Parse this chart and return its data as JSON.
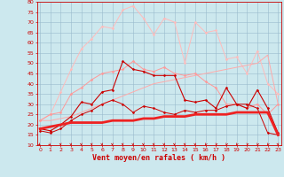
{
  "xlabel": "Vent moyen/en rafales ( km/h )",
  "bg_color": "#cce8ee",
  "grid_color": "#99bbcc",
  "xlim": [
    -0.3,
    23.3
  ],
  "ylim": [
    10,
    80
  ],
  "yticks": [
    10,
    15,
    20,
    25,
    30,
    35,
    40,
    45,
    50,
    55,
    60,
    65,
    70,
    75,
    80
  ],
  "xticks": [
    0,
    1,
    2,
    3,
    4,
    5,
    6,
    7,
    8,
    9,
    10,
    11,
    12,
    13,
    14,
    15,
    16,
    17,
    18,
    19,
    20,
    21,
    22,
    23
  ],
  "series": [
    {
      "x": [
        0,
        1,
        2,
        3,
        4,
        5,
        6,
        7,
        8,
        9,
        10,
        11,
        12,
        13,
        14,
        15,
        16,
        17,
        18,
        19,
        20,
        21,
        22,
        23
      ],
      "y": [
        22,
        25,
        36,
        47,
        57,
        62,
        68,
        67,
        76,
        78,
        72,
        64,
        72,
        70,
        50,
        70,
        65,
        66,
        52,
        53,
        45,
        56,
        40,
        35
      ],
      "color": "#ffbbbb",
      "linewidth": 0.7,
      "marker": "D",
      "markersize": 1.5,
      "zorder": 2
    },
    {
      "x": [
        0,
        1,
        2,
        3,
        4,
        5,
        6,
        7,
        8,
        9,
        10,
        11,
        12,
        13,
        14,
        15,
        16,
        17,
        18,
        19,
        20,
        21,
        22,
        23
      ],
      "y": [
        22,
        25,
        26,
        35,
        38,
        42,
        45,
        46,
        47,
        51,
        47,
        46,
        48,
        45,
        44,
        45,
        41,
        38,
        30,
        30,
        28,
        30,
        25,
        30
      ],
      "color": "#ff9999",
      "linewidth": 0.7,
      "marker": "D",
      "markersize": 1.5,
      "zorder": 3
    },
    {
      "x": [
        0,
        1,
        2,
        3,
        4,
        5,
        6,
        7,
        8,
        9,
        10,
        11,
        12,
        13,
        14,
        15,
        16,
        17,
        18,
        19,
        20,
        21,
        22,
        23
      ],
      "y": [
        22,
        22,
        23,
        24,
        26,
        28,
        30,
        32,
        34,
        36,
        38,
        40,
        41,
        42,
        43,
        44,
        45,
        46,
        47,
        48,
        49,
        50,
        54,
        30
      ],
      "color": "#ffaaaa",
      "linewidth": 0.7,
      "marker": null,
      "markersize": 0,
      "zorder": 2
    },
    {
      "x": [
        0,
        1,
        2,
        3,
        4,
        5,
        6,
        7,
        8,
        9,
        10,
        11,
        12,
        13,
        14,
        15,
        16,
        17,
        18,
        19,
        20,
        21,
        22,
        23
      ],
      "y": [
        18,
        17,
        20,
        24,
        31,
        30,
        36,
        37,
        51,
        47,
        46,
        44,
        44,
        44,
        32,
        31,
        32,
        28,
        38,
        30,
        28,
        37,
        28,
        16
      ],
      "color": "#cc0000",
      "linewidth": 0.8,
      "marker": "D",
      "markersize": 1.5,
      "zorder": 4
    },
    {
      "x": [
        0,
        1,
        2,
        3,
        4,
        5,
        6,
        7,
        8,
        9,
        10,
        11,
        12,
        13,
        14,
        15,
        16,
        17,
        18,
        19,
        20,
        21,
        22,
        23
      ],
      "y": [
        17,
        16,
        18,
        22,
        25,
        27,
        30,
        32,
        30,
        26,
        29,
        28,
        26,
        25,
        27,
        26,
        27,
        27,
        29,
        30,
        30,
        28,
        16,
        15
      ],
      "color": "#cc0000",
      "linewidth": 0.7,
      "marker": "D",
      "markersize": 1.5,
      "zorder": 4
    },
    {
      "x": [
        0,
        1,
        2,
        3,
        4,
        5,
        6,
        7,
        8,
        9,
        10,
        11,
        12,
        13,
        14,
        15,
        16,
        17,
        18,
        19,
        20,
        21,
        22,
        23
      ],
      "y": [
        18,
        19,
        20,
        21,
        21,
        21,
        21,
        22,
        22,
        22,
        23,
        23,
        24,
        24,
        24,
        25,
        25,
        25,
        25,
        26,
        26,
        26,
        26,
        15
      ],
      "color": "#ee2222",
      "linewidth": 2.0,
      "marker": null,
      "markersize": 0,
      "zorder": 5
    }
  ],
  "wind_angles": [
    45,
    45,
    10,
    10,
    10,
    10,
    10,
    10,
    10,
    10,
    10,
    10,
    10,
    10,
    10,
    10,
    340,
    340,
    340,
    340,
    340,
    340,
    340,
    10
  ],
  "wind_color": "#cc0000",
  "tick_color": "#cc0000",
  "label_color": "#cc0000",
  "tick_fontsize": 4.5,
  "xlabel_fontsize": 6.0
}
